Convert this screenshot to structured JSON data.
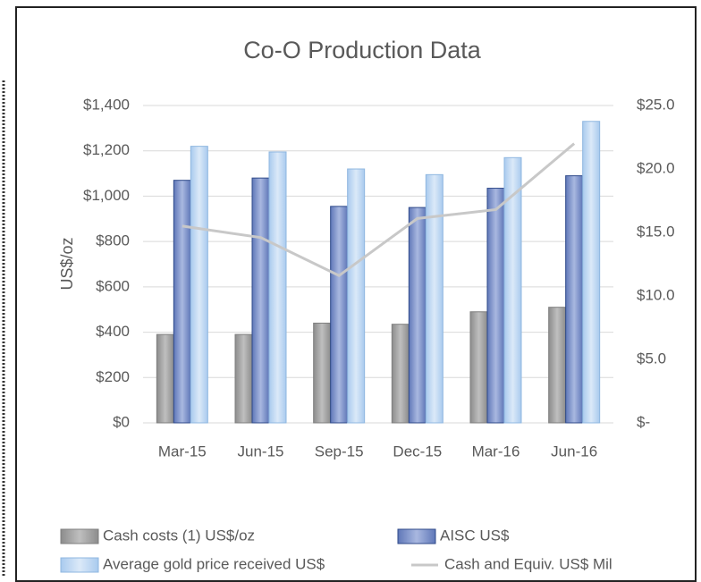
{
  "chart_data": {
    "type": "bar",
    "title": "Co-O Production Data",
    "y_label": "US$/oz",
    "categories": [
      "Mar-15",
      "Jun-15",
      "Sep-15",
      "Dec-15",
      "Mar-16",
      "Jun-16"
    ],
    "series": [
      {
        "name": "Cash costs (1) US$/oz",
        "color": "#a6a6a6",
        "values": [
          390,
          390,
          440,
          435,
          490,
          510
        ]
      },
      {
        "name": "AISC US$",
        "color": "#8fa2d4",
        "values": [
          1070,
          1080,
          955,
          950,
          1035,
          1090
        ]
      },
      {
        "name": "Average gold price received US$",
        "color": "#c5dcf3",
        "values": [
          1220,
          1195,
          1120,
          1095,
          1170,
          1330
        ]
      },
      {
        "name": "Cash and Equiv. US$ Mil",
        "color": "#c8c8c8",
        "type": "line",
        "axis": "y2",
        "values": [
          15.5,
          14.6,
          11.6,
          16.1,
          16.8,
          22.0
        ]
      }
    ],
    "ylim": [
      0,
      1400
    ],
    "yticks": [
      {
        "value": 0,
        "label": "$0"
      },
      {
        "value": 200,
        "label": "$200"
      },
      {
        "value": 400,
        "label": "$400"
      },
      {
        "value": 600,
        "label": "$600"
      },
      {
        "value": 800,
        "label": "$800"
      },
      {
        "value": 1000,
        "label": "$1,000"
      },
      {
        "value": 1200,
        "label": "$1,200"
      },
      {
        "value": 1400,
        "label": "$1,400"
      }
    ],
    "y2lim": [
      0,
      25
    ],
    "y2ticks": [
      {
        "value": 0,
        "label": "$-"
      },
      {
        "value": 5,
        "label": "$5.0"
      },
      {
        "value": 10,
        "label": "$10.0"
      },
      {
        "value": 15,
        "label": "$15.0"
      },
      {
        "value": 20,
        "label": "$20.0"
      },
      {
        "value": 25,
        "label": "$25.0"
      }
    ],
    "grid": true,
    "legend": "bottom"
  }
}
